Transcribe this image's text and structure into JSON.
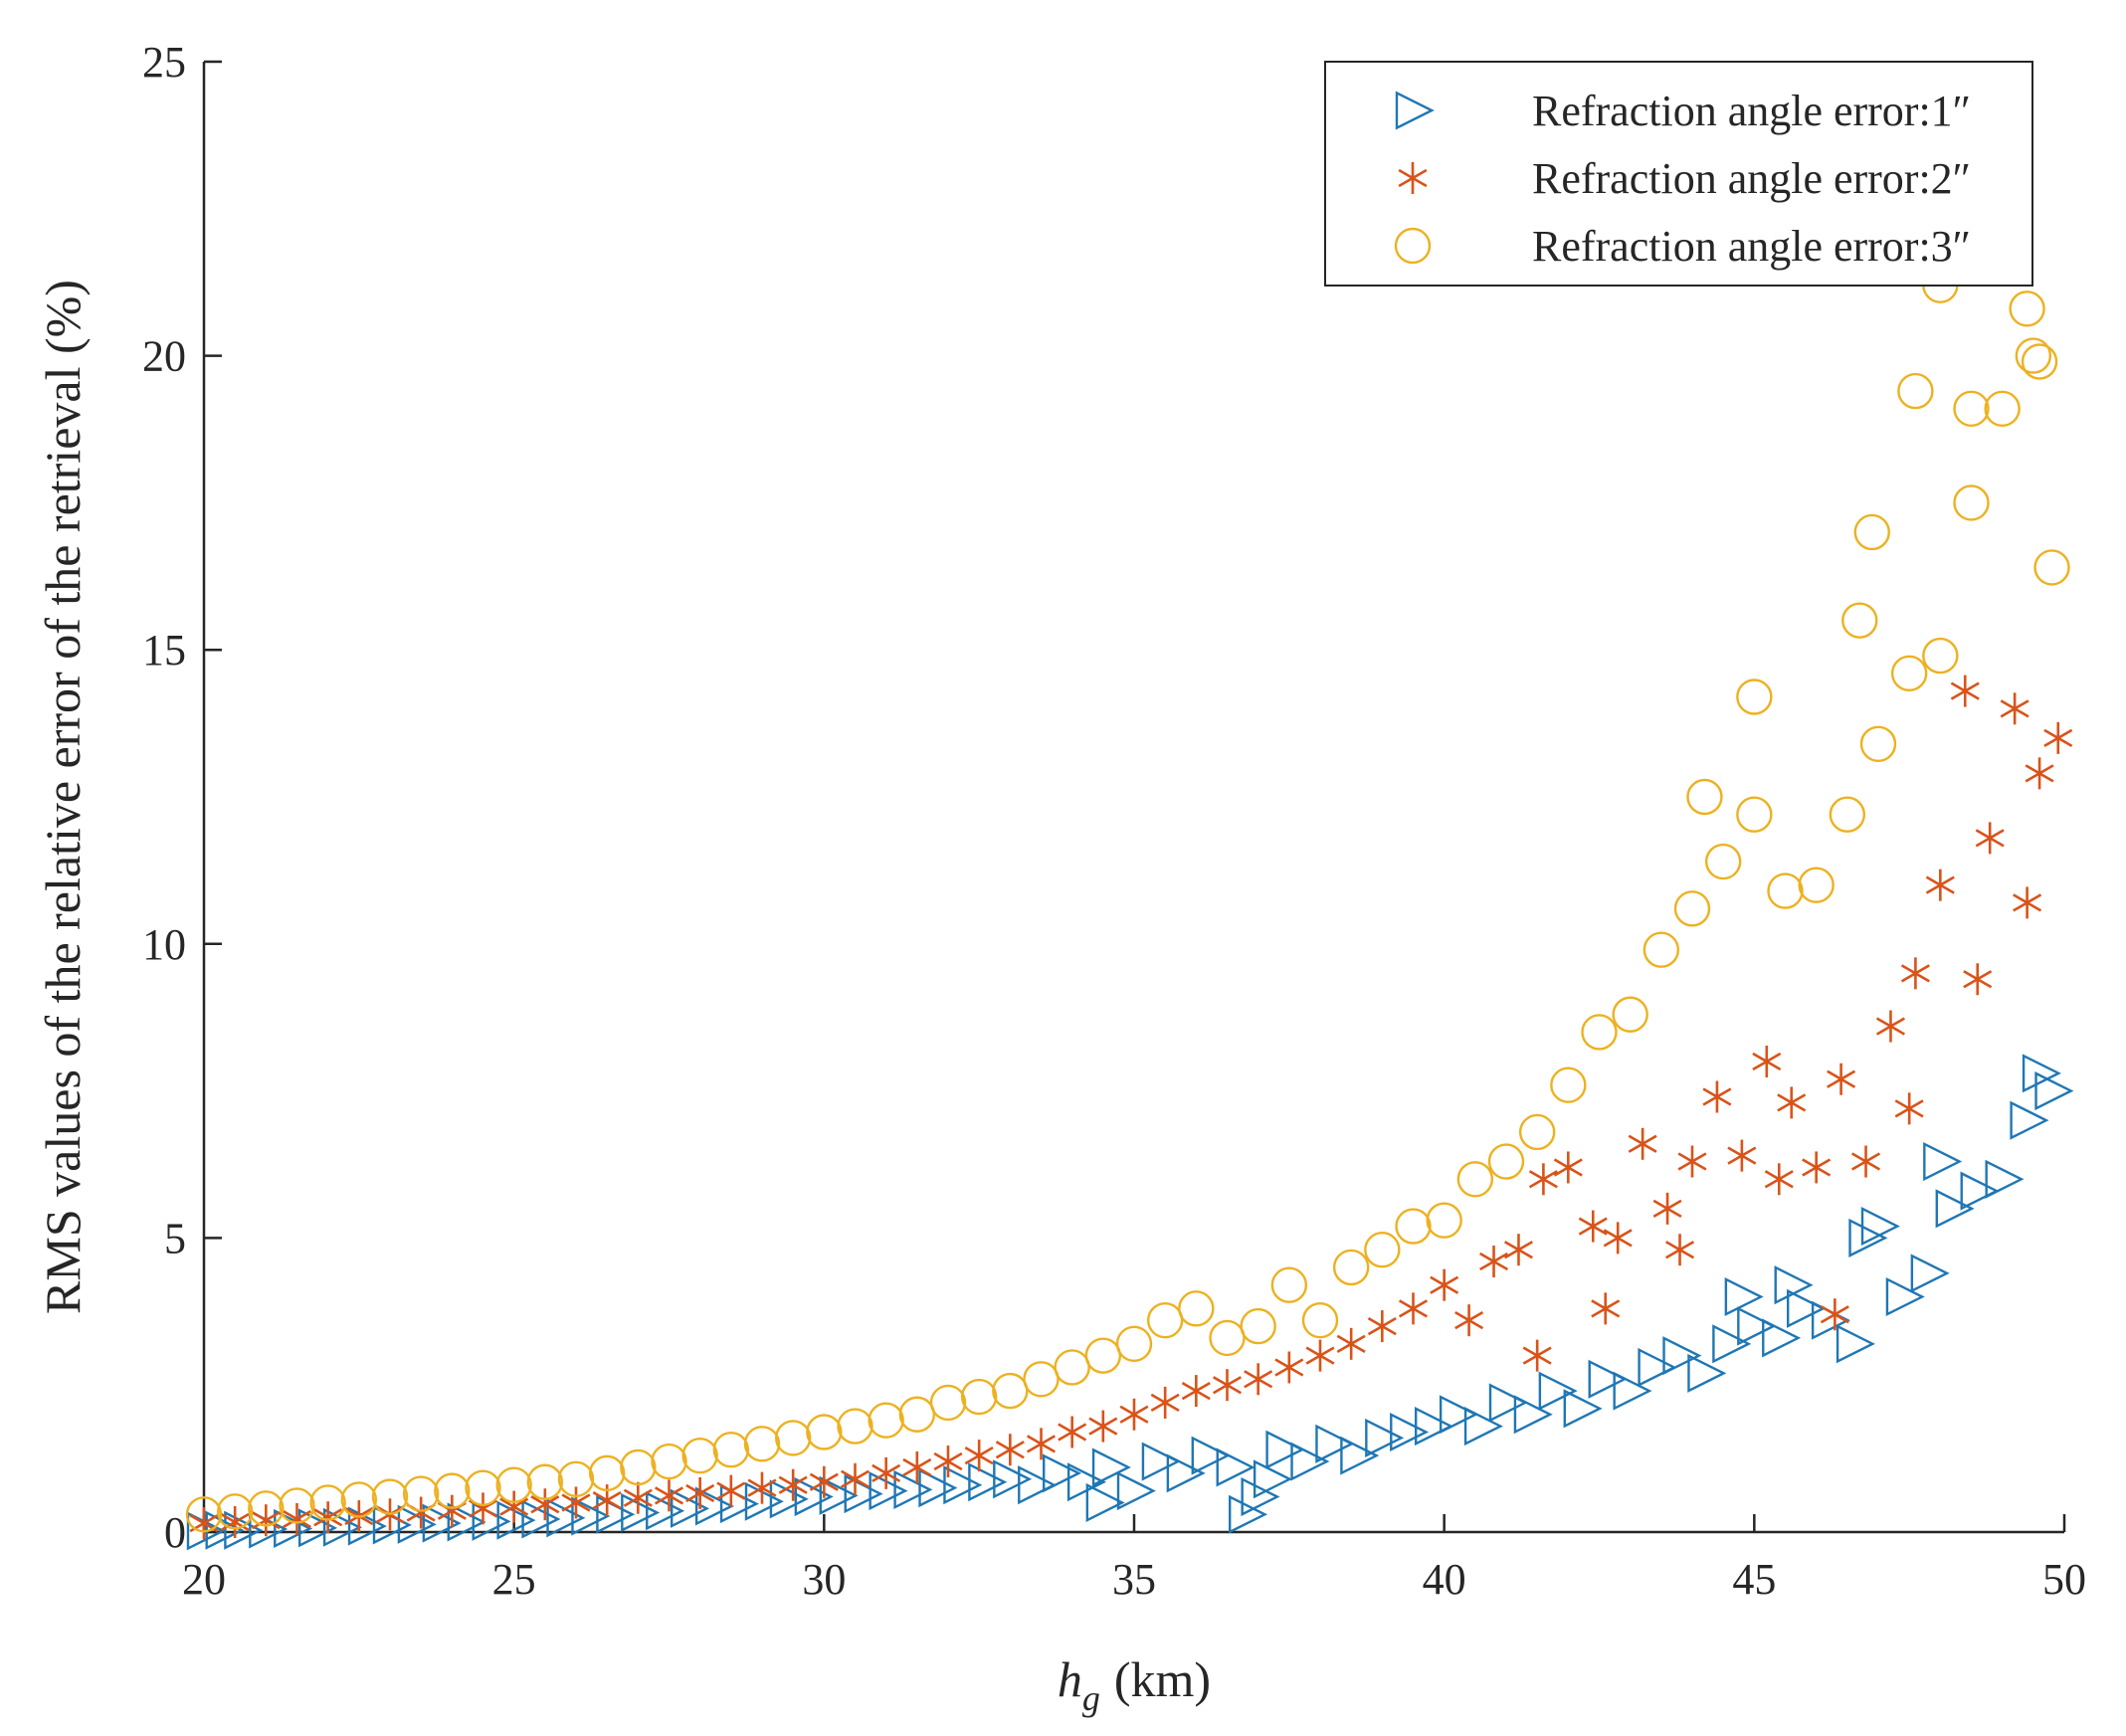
{
  "chart_data": {
    "type": "scatter",
    "xlabel": "h",
    "xlabel_subscript": "g",
    "xlabel_unit": "(km)",
    "ylabel": "RMS values of the relative error of the retrieval (%)",
    "xlim": [
      20,
      50
    ],
    "ylim": [
      0,
      25
    ],
    "xticks": [
      "20",
      "25",
      "30",
      "35",
      "40",
      "45",
      "50"
    ],
    "yticks": [
      "0",
      "5",
      "10",
      "15",
      "20",
      "25"
    ],
    "grid": false,
    "legend_position": "top-right",
    "series": [
      {
        "name": "Refraction angle error:1″",
        "marker": "triangle-right",
        "color": "#1f77b4",
        "x": [
          20.0,
          20.3,
          20.6,
          21.0,
          21.4,
          21.8,
          22.2,
          22.6,
          23.0,
          23.4,
          23.8,
          24.2,
          24.6,
          25.0,
          25.4,
          25.8,
          26.2,
          26.6,
          27.0,
          27.4,
          27.8,
          28.2,
          28.6,
          29.0,
          29.4,
          29.8,
          30.2,
          30.6,
          31.0,
          31.4,
          31.8,
          32.2,
          32.6,
          33.0,
          33.4,
          33.8,
          34.2,
          34.6,
          35.0,
          35.4,
          35.8,
          36.2,
          36.6,
          37.0,
          37.4,
          37.8,
          38.2,
          38.6,
          39.0,
          39.4,
          39.8,
          40.2,
          40.6,
          41.0,
          41.4,
          41.8,
          42.2,
          42.6,
          43.0,
          43.4,
          43.8,
          44.2,
          44.6,
          45.0,
          45.4,
          45.8,
          46.2,
          46.6,
          47.0,
          47.4,
          47.8,
          48.2,
          48.6,
          49.0,
          49.4,
          49.8,
          34.5,
          36.8,
          37.2,
          44.8,
          45.6,
          46.8,
          48.0,
          49.6
        ],
        "y": [
          0.02,
          0.03,
          0.03,
          0.05,
          0.06,
          0.07,
          0.08,
          0.1,
          0.12,
          0.13,
          0.15,
          0.17,
          0.18,
          0.2,
          0.22,
          0.24,
          0.27,
          0.3,
          0.33,
          0.36,
          0.4,
          0.44,
          0.48,
          0.52,
          0.56,
          0.6,
          0.62,
          0.65,
          0.7,
          0.72,
          0.75,
          0.8,
          0.85,
          0.9,
          0.8,
          1.0,
          0.85,
          1.1,
          0.7,
          1.2,
          1.0,
          1.3,
          1.1,
          0.6,
          1.4,
          1.2,
          1.5,
          1.3,
          1.6,
          1.7,
          1.8,
          2.0,
          1.8,
          2.2,
          2.0,
          2.4,
          2.1,
          2.6,
          2.4,
          2.8,
          3.0,
          2.7,
          3.2,
          3.5,
          3.3,
          3.8,
          3.6,
          3.2,
          5.2,
          4.0,
          4.4,
          5.5,
          5.8,
          6.0,
          7.0,
          7.5,
          0.5,
          0.3,
          0.9,
          4.0,
          4.2,
          5.0,
          6.3,
          7.8
        ]
      },
      {
        "name": "Refraction angle error:2″",
        "marker": "asterisk",
        "color": "#d95319",
        "x": [
          20.0,
          20.5,
          21.0,
          21.5,
          22.0,
          22.5,
          23.0,
          23.5,
          24.0,
          24.5,
          25.0,
          25.5,
          26.0,
          26.5,
          27.0,
          27.5,
          28.0,
          28.5,
          29.0,
          29.5,
          30.0,
          30.5,
          31.0,
          31.5,
          32.0,
          32.5,
          33.0,
          33.5,
          34.0,
          34.5,
          35.0,
          35.5,
          36.0,
          36.5,
          37.0,
          37.5,
          38.0,
          38.5,
          39.0,
          39.5,
          40.0,
          40.4,
          40.8,
          41.2,
          41.6,
          42.0,
          42.4,
          42.8,
          43.2,
          43.6,
          44.0,
          44.4,
          44.8,
          45.2,
          45.6,
          46.0,
          46.4,
          46.8,
          47.2,
          47.6,
          48.0,
          48.4,
          48.8,
          49.2,
          49.6,
          49.9,
          41.5,
          42.6,
          43.8,
          45.4,
          46.3,
          47.5,
          48.6,
          49.4
        ],
        "y": [
          0.15,
          0.17,
          0.2,
          0.22,
          0.25,
          0.27,
          0.3,
          0.33,
          0.36,
          0.4,
          0.43,
          0.47,
          0.5,
          0.54,
          0.58,
          0.62,
          0.66,
          0.7,
          0.75,
          0.8,
          0.85,
          0.9,
          1.0,
          1.1,
          1.2,
          1.3,
          1.4,
          1.5,
          1.7,
          1.8,
          2.0,
          2.2,
          2.4,
          2.5,
          2.6,
          2.8,
          3.0,
          3.2,
          3.5,
          3.8,
          4.2,
          3.6,
          4.6,
          4.8,
          6.0,
          6.2,
          5.2,
          5.0,
          6.6,
          5.5,
          6.3,
          7.4,
          6.4,
          8.0,
          7.3,
          6.2,
          7.7,
          6.3,
          8.6,
          9.5,
          11.0,
          14.3,
          11.8,
          14.0,
          12.9,
          13.5,
          3.0,
          3.8,
          4.8,
          6.0,
          3.7,
          7.2,
          9.4,
          10.7
        ]
      },
      {
        "name": "Refraction angle error:3″",
        "marker": "circle",
        "color": "#edb120",
        "x": [
          20.0,
          20.5,
          21.0,
          21.5,
          22.0,
          22.5,
          23.0,
          23.5,
          24.0,
          24.5,
          25.0,
          25.5,
          26.0,
          26.5,
          27.0,
          27.5,
          28.0,
          28.5,
          29.0,
          29.5,
          30.0,
          30.5,
          31.0,
          31.5,
          32.0,
          32.5,
          33.0,
          33.5,
          34.0,
          34.5,
          35.0,
          35.5,
          36.0,
          36.5,
          37.0,
          37.5,
          38.0,
          38.5,
          39.0,
          39.5,
          40.0,
          40.5,
          41.0,
          41.5,
          42.0,
          42.5,
          43.0,
          43.5,
          44.0,
          44.5,
          45.0,
          45.5,
          46.0,
          46.5,
          47.0,
          47.5,
          48.0,
          48.5,
          49.0,
          49.5,
          49.8,
          46.9,
          47.6,
          48.5,
          49.4,
          45.0,
          44.2,
          46.7,
          48.0,
          49.6
        ],
        "y": [
          0.3,
          0.35,
          0.4,
          0.45,
          0.5,
          0.55,
          0.6,
          0.65,
          0.7,
          0.75,
          0.8,
          0.85,
          0.9,
          1.0,
          1.1,
          1.2,
          1.3,
          1.4,
          1.5,
          1.6,
          1.7,
          1.8,
          1.9,
          2.0,
          2.2,
          2.3,
          2.4,
          2.6,
          2.8,
          3.0,
          3.2,
          3.6,
          3.8,
          3.3,
          3.5,
          4.2,
          3.6,
          4.5,
          4.8,
          5.2,
          5.3,
          6.0,
          6.3,
          6.8,
          7.6,
          8.5,
          8.8,
          9.9,
          10.6,
          11.4,
          12.2,
          10.9,
          11.0,
          12.2,
          13.4,
          14.6,
          14.9,
          19.1,
          19.1,
          20.0,
          16.4,
          17.0,
          19.4,
          17.5,
          20.8,
          14.2,
          12.5,
          15.5,
          21.2,
          19.9
        ]
      }
    ]
  }
}
